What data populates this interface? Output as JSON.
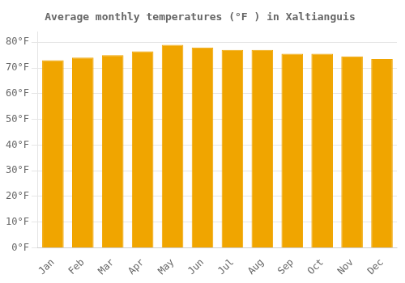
{
  "chart_data": {
    "type": "bar",
    "title": "Average monthly temperatures (°F ) in Xaltianguis",
    "categories": [
      "Jan",
      "Feb",
      "Mar",
      "Apr",
      "May",
      "Jun",
      "Jul",
      "Aug",
      "Sep",
      "Oct",
      "Nov",
      "Dec"
    ],
    "values": [
      73,
      74,
      75,
      76.5,
      79,
      78,
      77,
      77,
      75.5,
      75.5,
      74.5,
      73.5
    ],
    "color": "#F0A500",
    "ylim": [
      0,
      84
    ],
    "yticks": [
      {
        "value": 0,
        "label": "0°F"
      },
      {
        "value": 10,
        "label": "10°F"
      },
      {
        "value": 20,
        "label": "20°F"
      },
      {
        "value": 30,
        "label": "30°F"
      },
      {
        "value": 40,
        "label": "40°F"
      },
      {
        "value": 50,
        "label": "50°F"
      },
      {
        "value": 60,
        "label": "60°F"
      },
      {
        "value": 70,
        "label": "70°F"
      },
      {
        "value": 80,
        "label": "80°F"
      }
    ],
    "grid": true
  }
}
